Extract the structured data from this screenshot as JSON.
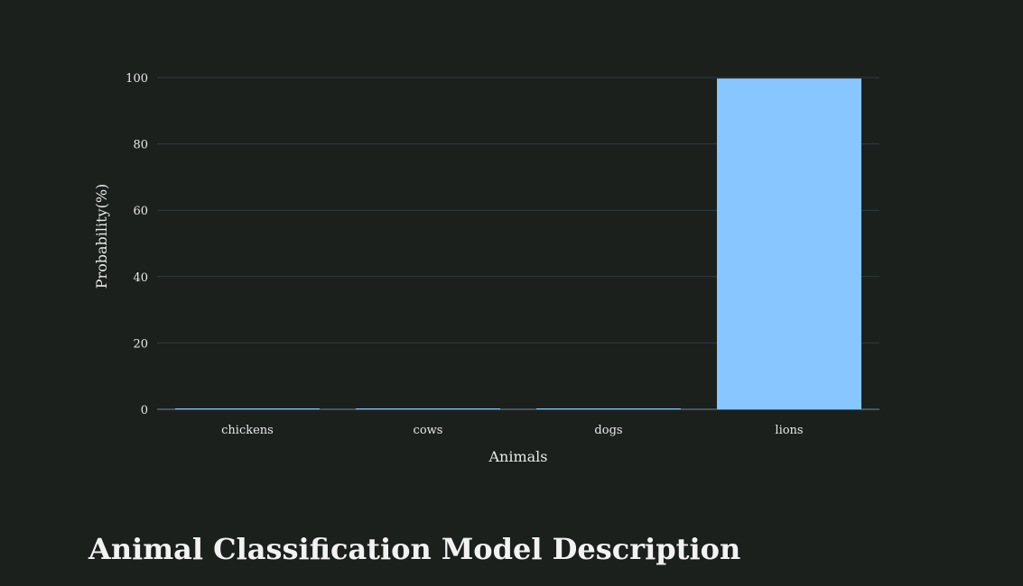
{
  "chart_data": {
    "type": "bar",
    "categories": [
      "chickens",
      "cows",
      "dogs",
      "lions"
    ],
    "values": [
      0.1,
      0.1,
      0.1,
      99.7
    ],
    "xlabel": "Animals",
    "ylabel": "Probability(%)",
    "ylim": [
      0,
      100
    ],
    "yticks": [
      0,
      20,
      40,
      60,
      80,
      100
    ],
    "grid": true,
    "bar_color": "#87c6ff",
    "zero_line_color": "#6e8a9e",
    "grid_color": "#323a44"
  },
  "page": {
    "section_title": "Animal Classification Model Description"
  }
}
